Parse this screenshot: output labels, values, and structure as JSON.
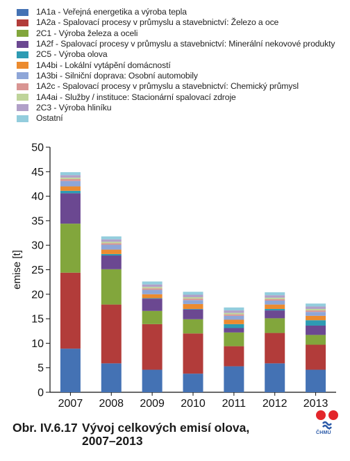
{
  "chart_data": {
    "type": "bar",
    "stacked": true,
    "title": "Vývoj celkových emisí olova, 2007–2013",
    "xlabel": "",
    "ylabel": "emise [t]",
    "ylim": [
      0,
      50
    ],
    "yticks": [
      "0",
      "5",
      "10",
      "15",
      "20",
      "25",
      "30",
      "35",
      "40",
      "45",
      "50"
    ],
    "grid": false,
    "legend_position": "top-left",
    "categories": [
      "2007",
      "2008",
      "2009",
      "2010",
      "2011",
      "2012",
      "2013"
    ],
    "series": [
      {
        "name": "1A1a - Veřejná energetika a výroba tepla",
        "color": "#4472b4",
        "values": [
          8.9,
          5.9,
          4.6,
          3.8,
          5.3,
          5.9,
          4.6
        ]
      },
      {
        "name": "1A2a - Spalovací procesy v průmyslu a stavebnictví: Železo a oce",
        "color": "#b23c3a",
        "values": [
          15.5,
          12.0,
          9.3,
          8.2,
          4.1,
          6.2,
          5.1
        ]
      },
      {
        "name": "2C1 - Výroba železa a oceli",
        "color": "#82a63c",
        "values": [
          10.0,
          7.2,
          2.7,
          2.9,
          2.8,
          3.0,
          2.0
        ]
      },
      {
        "name": "1A2f - Spalovací procesy v průmyslu a stavebnictví: Minerální nekovové produkty",
        "color": "#6b4891",
        "values": [
          6.2,
          2.8,
          2.5,
          2.0,
          0.9,
          1.6,
          1.9
        ]
      },
      {
        "name": "2C5 - Výroba olova",
        "color": "#2e9bb3",
        "values": [
          0.5,
          0.3,
          0.1,
          0.1,
          0.8,
          0.3,
          1.1
        ]
      },
      {
        "name": "1A4bi - Lokální vytápění domácností",
        "color": "#ec8b2f",
        "values": [
          0.9,
          0.9,
          0.8,
          1.0,
          0.9,
          0.9,
          0.9
        ]
      },
      {
        "name": "1A3bi - Silniční doprava: Osobní automobily",
        "color": "#8ea6d8",
        "values": [
          1.1,
          1.0,
          0.9,
          0.8,
          0.8,
          0.8,
          0.8
        ]
      },
      {
        "name": "1A2c - Spalovací procesy v průmyslu a stavebnictví: Chemický průmysl",
        "color": "#d99593",
        "values": [
          0.4,
          0.3,
          0.3,
          0.3,
          0.3,
          0.3,
          0.3
        ]
      },
      {
        "name": "1A4ai - Služby / instituce: Stacionární spalovací zdroje",
        "color": "#bfd49a",
        "values": [
          0.3,
          0.3,
          0.3,
          0.3,
          0.3,
          0.3,
          0.3
        ]
      },
      {
        "name": "2C3 - Výroba hliníku",
        "color": "#b1a0c8",
        "values": [
          0.5,
          0.5,
          0.5,
          0.5,
          0.5,
          0.5,
          0.5
        ]
      },
      {
        "name": "Ostatní",
        "color": "#93cddd",
        "values": [
          0.6,
          0.6,
          0.6,
          0.6,
          0.6,
          0.6,
          0.6
        ]
      }
    ]
  },
  "caption": {
    "number": "Obr. IV.6.17",
    "line1": "Vývoj celkových emisí olova,",
    "line2": "2007–2013"
  },
  "logo": {
    "text": "ČHMÚ",
    "colors": [
      "#e3262b",
      "#e3262b",
      "#2b5aa8"
    ]
  }
}
